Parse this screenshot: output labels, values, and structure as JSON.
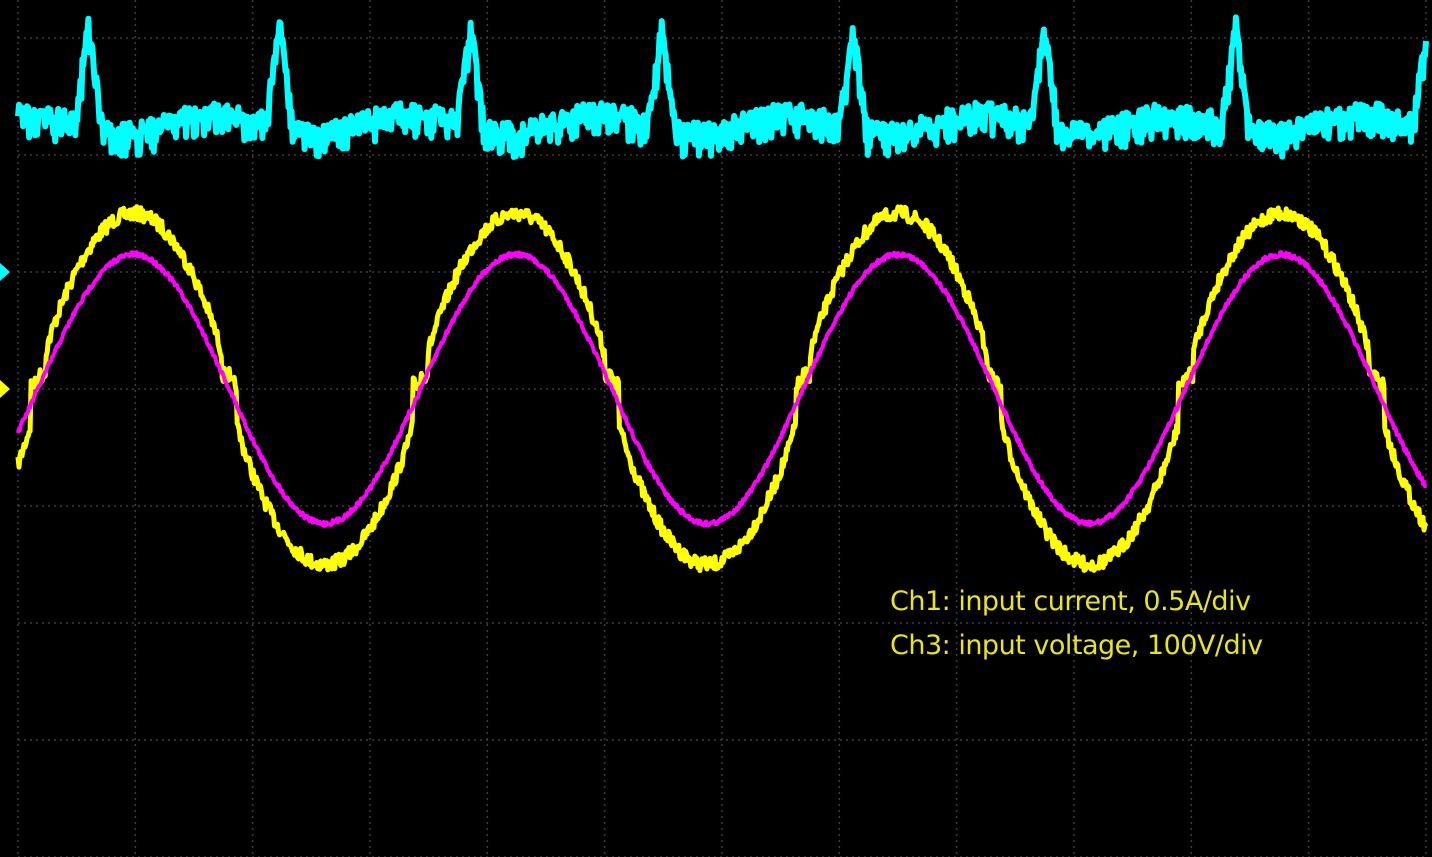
{
  "chart_data": {
    "type": "line",
    "instrument": "oscilloscope",
    "background": "#000000",
    "grid": true,
    "grid_color": "#3c3c3c",
    "divisions": {
      "horizontal": 12,
      "vertical": 8
    },
    "annotations": [
      "Ch1: input current, 0.5A/div",
      "Ch3: input voltage, 100V/div"
    ],
    "x": {
      "unit": "div",
      "range": [
        0,
        12
      ]
    },
    "series": [
      {
        "name": "Ch1",
        "color": "#ffff00",
        "shape": "distorted-sine",
        "period_div": 3.26,
        "amplitude_div": 1.5,
        "noise_div": 0.06,
        "flat_zero_crossings": true
      },
      {
        "name": "Ch3",
        "color": "#ff00ff",
        "shape": "sine",
        "period_div": 3.26,
        "amplitude_div": 1.15,
        "noise_div": 0.02,
        "flat_zero_crossings": false
      },
      {
        "name": "",
        "color": "#00ffff",
        "shape": "ripple-with-peaks",
        "peak_period_div": 1.63,
        "noise_div": 0.1
      }
    ],
    "ground_markers": [
      {
        "color": "#00ffff",
        "level_div": 1.0
      },
      {
        "color": "#ffff00",
        "level_div": 0.0
      }
    ]
  }
}
